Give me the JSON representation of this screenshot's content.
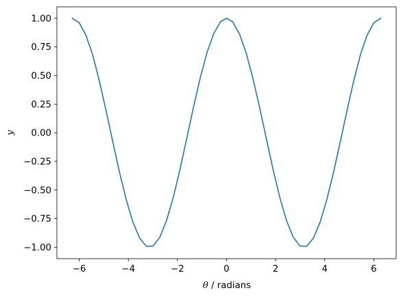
{
  "chart_data": {
    "type": "line",
    "title": "",
    "xlabel_symbol": "θ",
    "xlabel_rest": " / radians",
    "ylabel": "y",
    "xlim": [
      -6.91,
      6.91
    ],
    "ylim": [
      -1.1,
      1.1
    ],
    "grid": false,
    "legend": "none",
    "x_ticks": [
      -6,
      -4,
      -2,
      0,
      2,
      4,
      6
    ],
    "x_tick_labels": [
      "−6",
      "−4",
      "−2",
      "0",
      "2",
      "4",
      "6"
    ],
    "y_ticks": [
      1.0,
      0.75,
      0.5,
      0.25,
      0.0,
      -0.25,
      -0.5,
      -0.75,
      -1.0
    ],
    "y_tick_labels": [
      "1.00",
      "0.75",
      "0.50",
      "0.25",
      "0.00",
      "−0.25",
      "−0.50",
      "−0.75",
      "−1.00"
    ],
    "series": [
      {
        "color": "#1f77b4",
        "x": [
          -6.2832,
          -6.0088,
          -5.7345,
          -5.4601,
          -5.1858,
          -4.9114,
          -4.6371,
          -4.3627,
          -4.0884,
          -3.814,
          -3.5397,
          -3.2653,
          -2.991,
          -2.7166,
          -2.4423,
          -2.1679,
          -1.8936,
          -1.6192,
          -1.3449,
          -1.0705,
          -0.7962,
          -0.5218,
          -0.2475,
          0.0,
          0.2475,
          0.5218,
          0.7962,
          1.0705,
          1.3449,
          1.6192,
          1.8936,
          2.1679,
          2.4423,
          2.7166,
          2.991,
          3.2653,
          3.5397,
          3.814,
          4.0884,
          4.3627,
          4.6371,
          4.9114,
          5.1858,
          5.4601,
          5.7345,
          6.0088,
          6.2832
        ],
        "y": [
          1.0,
          0.963,
          0.856,
          0.686,
          0.458,
          0.197,
          -0.075,
          -0.342,
          -0.582,
          -0.78,
          -0.92,
          -0.992,
          -0.989,
          -0.912,
          -0.766,
          -0.563,
          -0.318,
          -0.048,
          0.224,
          0.48,
          0.7,
          0.867,
          0.97,
          1.0,
          0.97,
          0.867,
          0.7,
          0.48,
          0.224,
          -0.048,
          -0.318,
          -0.563,
          -0.766,
          -0.912,
          -0.989,
          -0.992,
          -0.92,
          -0.78,
          -0.582,
          -0.342,
          -0.075,
          0.197,
          0.458,
          0.686,
          0.856,
          0.963,
          1.0
        ]
      }
    ]
  }
}
